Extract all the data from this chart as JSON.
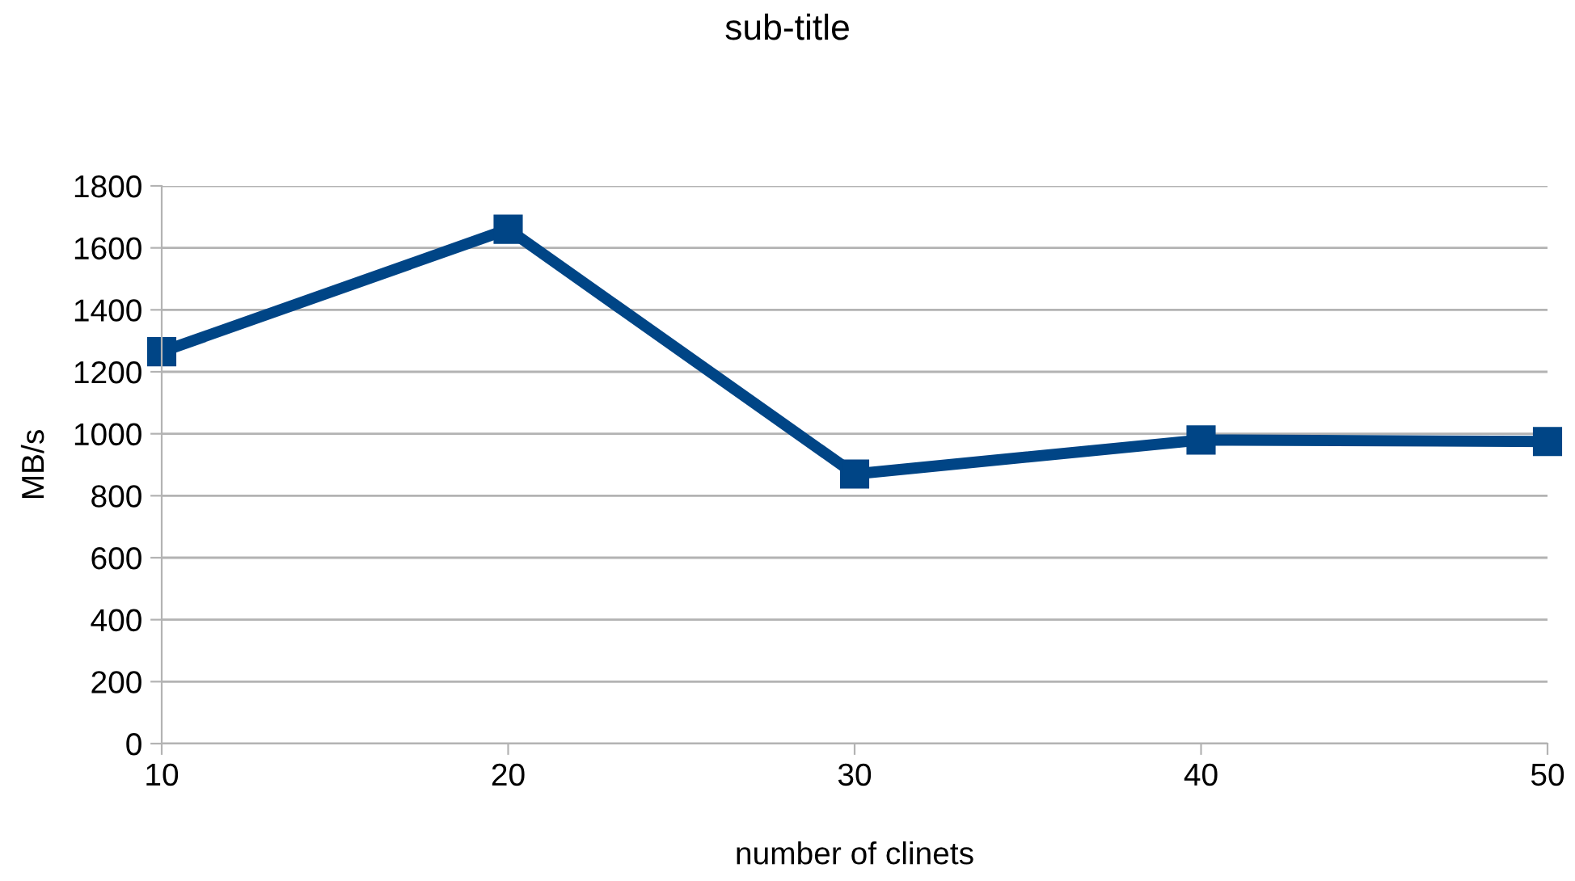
{
  "chart_data": {
    "type": "line",
    "title": "sub-title",
    "xlabel": "number of clinets",
    "ylabel": "MB/s",
    "x": [
      10,
      20,
      30,
      40,
      50
    ],
    "series": [
      {
        "color": "#004586",
        "values": [
          1265,
          1660,
          870,
          980,
          975
        ]
      }
    ],
    "xlim": [
      10,
      50
    ],
    "xticks": [
      10,
      20,
      30,
      40,
      50
    ],
    "ylim": [
      0,
      1800
    ],
    "yticks": [
      0,
      200,
      400,
      600,
      800,
      1000,
      1200,
      1400,
      1600,
      1800
    ],
    "grid": "y",
    "marker": "square",
    "line_style": "solid"
  }
}
